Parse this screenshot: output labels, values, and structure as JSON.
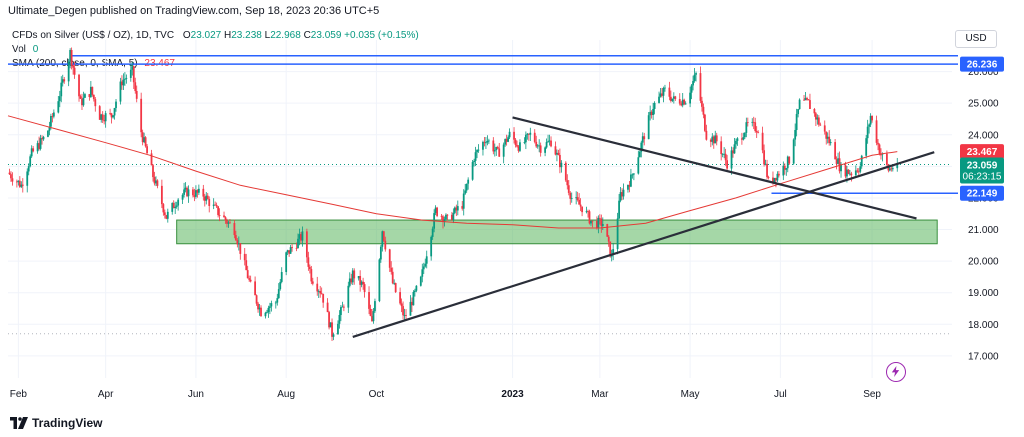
{
  "header": "Ultimate_Degen published on TradingView.com, Sep 18, 2023 20:36 UTC+5",
  "legend": {
    "symbol": "CFDs on Silver (US$ / OZ), 1D, TVC",
    "open_label": "O",
    "open": "23.027",
    "high_label": "H",
    "high": "23.238",
    "low_label": "L",
    "low": "22.968",
    "close_label": "C",
    "close": "23.059",
    "change": "+0.035 (+0.15%)",
    "vol_label": "Vol",
    "vol": "0",
    "sma_label": "SMA (200, close, 0, SMA, 5)",
    "sma": "23.467"
  },
  "currency": "USD",
  "branding": "TradingView",
  "icons": {
    "logo": "tradingview-logo-icon",
    "flash": "lightning-icon"
  },
  "colors": {
    "up": "#089981",
    "down": "#f23645",
    "sma": "#e53935",
    "hline": "#2962ff",
    "trend": "#2a2e39",
    "zone": "#4caf50",
    "grid": "#f0f3fa"
  },
  "chart_data": {
    "type": "candlestick",
    "title": "",
    "xlabel": "",
    "ylabel": "",
    "ylim": [
      16.3,
      27.0
    ],
    "y_ticks": [
      "17.000",
      "18.000",
      "19.000",
      "20.000",
      "21.000",
      "22.000",
      "23.000",
      "24.000",
      "25.000",
      "26.000"
    ],
    "x_ticks": [
      "Feb",
      "Apr",
      "Jun",
      "Aug",
      "Oct",
      "2023",
      "Mar",
      "May",
      "Jul",
      "Sep"
    ],
    "x_tick_dates": [
      "2022-02-01",
      "2022-04-01",
      "2022-06-01",
      "2022-08-01",
      "2022-10-01",
      "2023-01-01",
      "2023-03-01",
      "2023-05-01",
      "2023-07-01",
      "2023-09-01"
    ],
    "x_range": [
      "2022-01-25",
      "2023-10-25"
    ],
    "path": [
      [
        "2022-01-25",
        22.8
      ],
      [
        "2022-02-03",
        22.4
      ],
      [
        "2022-02-10",
        23.4
      ],
      [
        "2022-02-20",
        24.0
      ],
      [
        "2022-03-01",
        25.3
      ],
      [
        "2022-03-08",
        26.6
      ],
      [
        "2022-03-15",
        25.0
      ],
      [
        "2022-03-22",
        25.4
      ],
      [
        "2022-03-28",
        24.6
      ],
      [
        "2022-04-05",
        24.6
      ],
      [
        "2022-04-12",
        25.7
      ],
      [
        "2022-04-19",
        26.0
      ],
      [
        "2022-04-25",
        24.1
      ],
      [
        "2022-05-03",
        22.7
      ],
      [
        "2022-05-12",
        21.4
      ],
      [
        "2022-05-20",
        22.0
      ],
      [
        "2022-05-26",
        22.2
      ],
      [
        "2022-06-06",
        22.1
      ],
      [
        "2022-06-13",
        21.7
      ],
      [
        "2022-06-27",
        21.0
      ],
      [
        "2022-07-08",
        19.2
      ],
      [
        "2022-07-15",
        18.4
      ],
      [
        "2022-07-25",
        18.7
      ],
      [
        "2022-08-01",
        20.2
      ],
      [
        "2022-08-12",
        20.8
      ],
      [
        "2022-08-18",
        19.5
      ],
      [
        "2022-08-25",
        19.0
      ],
      [
        "2022-09-01",
        17.7
      ],
      [
        "2022-09-08",
        18.5
      ],
      [
        "2022-09-15",
        19.6
      ],
      [
        "2022-09-22",
        19.2
      ],
      [
        "2022-09-28",
        18.0
      ],
      [
        "2022-10-05",
        21.0
      ],
      [
        "2022-10-12",
        19.3
      ],
      [
        "2022-10-20",
        18.2
      ],
      [
        "2022-10-31",
        19.4
      ],
      [
        "2022-11-10",
        21.6
      ],
      [
        "2022-11-18",
        21.3
      ],
      [
        "2022-11-28",
        21.8
      ],
      [
        "2022-12-06",
        23.3
      ],
      [
        "2022-12-14",
        23.9
      ],
      [
        "2022-12-22",
        23.4
      ],
      [
        "2022-12-30",
        24.0
      ],
      [
        "2023-01-06",
        23.6
      ],
      [
        "2023-01-13",
        24.0
      ],
      [
        "2023-01-20",
        23.6
      ],
      [
        "2023-01-27",
        23.8
      ],
      [
        "2023-02-03",
        23.0
      ],
      [
        "2023-02-10",
        22.0
      ],
      [
        "2023-02-17",
        21.7
      ],
      [
        "2023-02-24",
        21.2
      ],
      [
        "2023-03-03",
        21.2
      ],
      [
        "2023-03-09",
        20.1
      ],
      [
        "2023-03-15",
        22.1
      ],
      [
        "2023-03-22",
        22.6
      ],
      [
        "2023-03-31",
        24.0
      ],
      [
        "2023-04-06",
        24.9
      ],
      [
        "2023-04-14",
        25.4
      ],
      [
        "2023-04-20",
        25.1
      ],
      [
        "2023-04-28",
        25.1
      ],
      [
        "2023-05-05",
        25.9
      ],
      [
        "2023-05-12",
        24.0
      ],
      [
        "2023-05-19",
        23.8
      ],
      [
        "2023-05-26",
        23.1
      ],
      [
        "2023-06-02",
        23.8
      ],
      [
        "2023-06-09",
        24.3
      ],
      [
        "2023-06-16",
        24.2
      ],
      [
        "2023-06-23",
        22.5
      ],
      [
        "2023-06-30",
        22.8
      ],
      [
        "2023-07-07",
        23.2
      ],
      [
        "2023-07-14",
        25.0
      ],
      [
        "2023-07-20",
        25.0
      ],
      [
        "2023-07-28",
        24.3
      ],
      [
        "2023-08-04",
        23.7
      ],
      [
        "2023-08-11",
        22.9
      ],
      [
        "2023-08-18",
        22.8
      ],
      [
        "2023-08-24",
        23.0
      ],
      [
        "2023-08-31",
        24.6
      ],
      [
        "2023-09-06",
        23.5
      ],
      [
        "2023-09-12",
        22.9
      ],
      [
        "2023-09-18",
        23.06
      ]
    ],
    "sma_200": [
      [
        "2022-01-25",
        24.6
      ],
      [
        "2022-03-01",
        24.15
      ],
      [
        "2022-04-01",
        23.75
      ],
      [
        "2022-05-01",
        23.35
      ],
      [
        "2022-06-01",
        22.85
      ],
      [
        "2022-07-01",
        22.4
      ],
      [
        "2022-08-01",
        22.1
      ],
      [
        "2022-09-01",
        21.8
      ],
      [
        "2022-10-01",
        21.5
      ],
      [
        "2022-11-01",
        21.3
      ],
      [
        "2022-12-01",
        21.2
      ],
      [
        "2023-01-01",
        21.15
      ],
      [
        "2023-02-01",
        21.05
      ],
      [
        "2023-03-01",
        21.05
      ],
      [
        "2023-04-01",
        21.2
      ],
      [
        "2023-05-01",
        21.6
      ],
      [
        "2023-06-01",
        22.0
      ],
      [
        "2023-07-01",
        22.45
      ],
      [
        "2023-08-01",
        22.9
      ],
      [
        "2023-09-01",
        23.35
      ],
      [
        "2023-09-18",
        23.467
      ]
    ],
    "horizontal_lines": [
      26.5,
      26.236,
      22.149
    ],
    "trendlines": [
      [
        [
          "2022-09-15",
          17.6
        ],
        [
          "2023-10-13",
          23.45
        ]
      ],
      [
        [
          "2023-01-01",
          24.55
        ],
        [
          "2023-10-01",
          21.35
        ]
      ]
    ],
    "zone": {
      "x": [
        "2022-05-19",
        "2023-10-15"
      ],
      "y": [
        20.55,
        21.3
      ]
    },
    "dotted_lines": [
      23.059,
      17.7
    ],
    "price_labels": [
      {
        "value": "26.236",
        "y": 26.236,
        "color": "#2962ff"
      },
      {
        "value": "23.467",
        "y": 23.467,
        "color": "#f23645"
      },
      {
        "value": "23.059",
        "y": 23.059,
        "color": "#089981",
        "sub": "06:23:15"
      },
      {
        "value": "22.149",
        "y": 22.149,
        "color": "#2962ff"
      }
    ]
  }
}
